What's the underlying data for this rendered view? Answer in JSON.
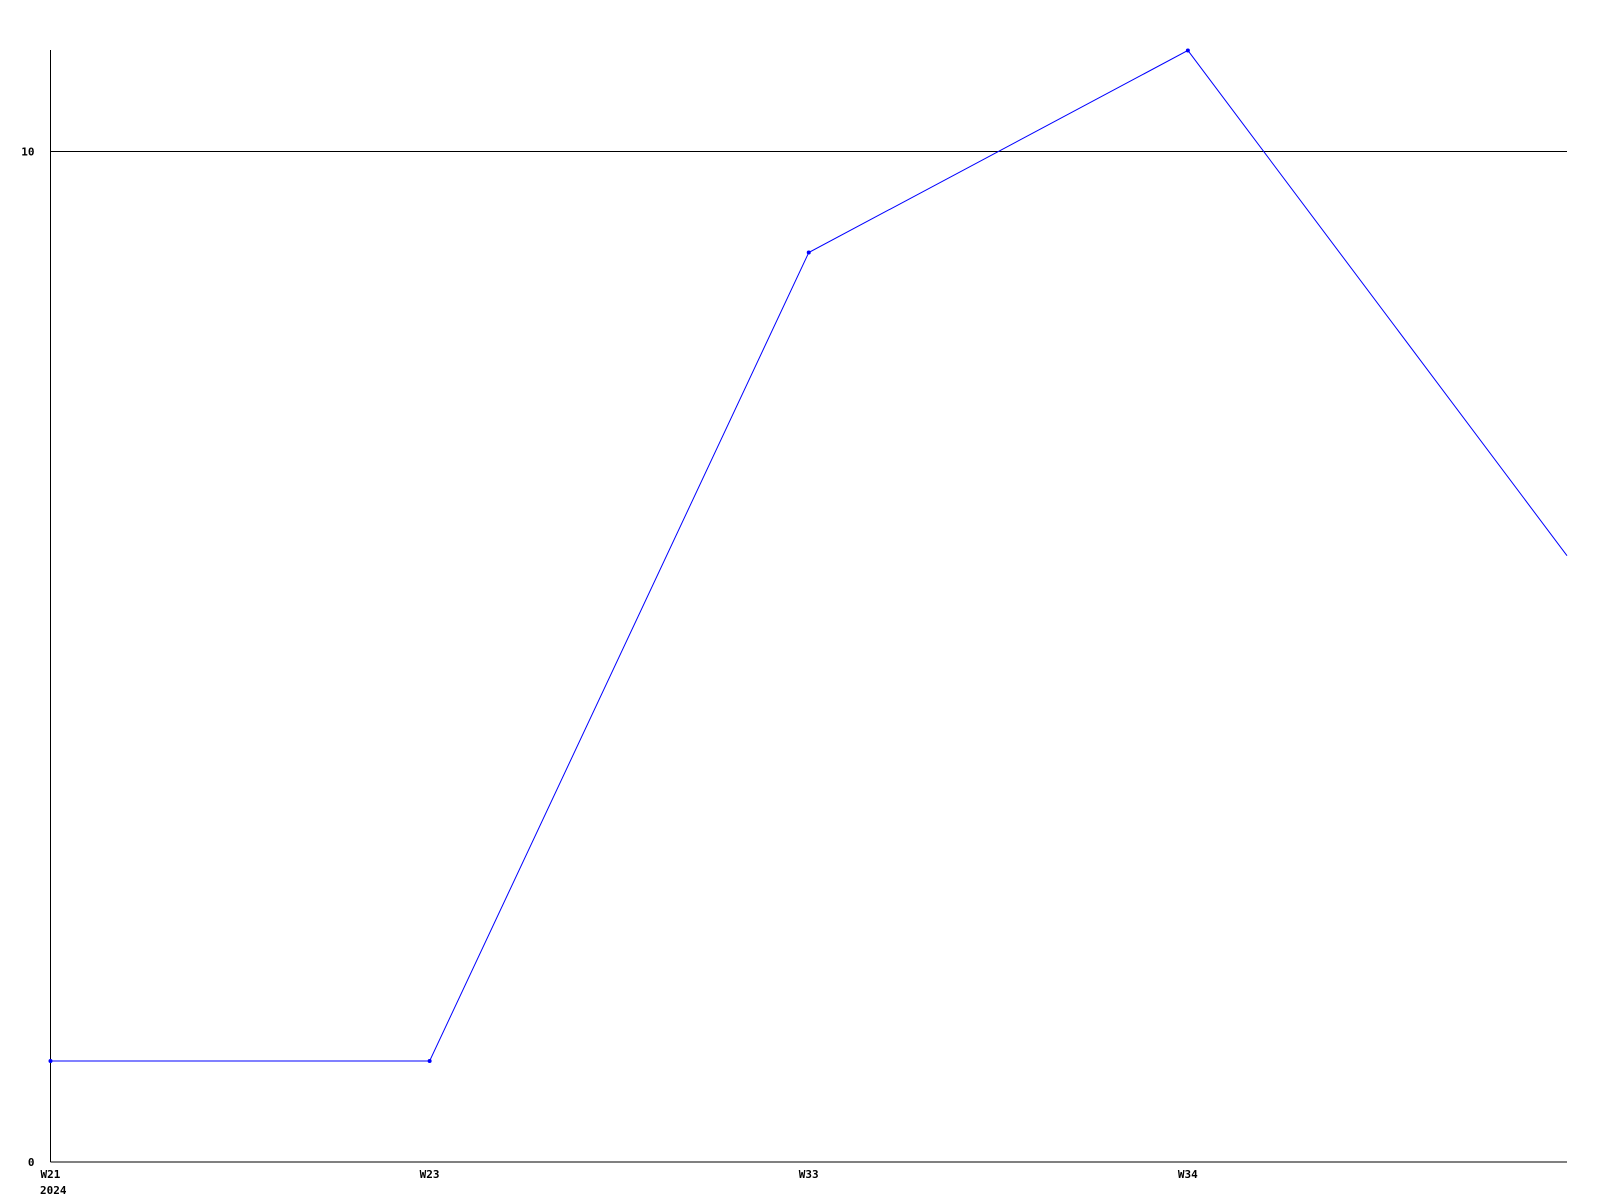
{
  "chart_data": {
    "type": "line",
    "title": "",
    "xlabel": "",
    "ylabel": "",
    "categories": [
      "W21",
      "W23",
      "W33",
      "W34",
      ""
    ],
    "x_sublabel": "2024",
    "values": [
      1,
      1,
      9,
      11,
      6
    ],
    "ylim": [
      0,
      11
    ],
    "yticks": [
      0,
      10
    ],
    "ytick_labels": [
      "0",
      "10"
    ],
    "grid": "horizontal line at 10",
    "line_color": "#0000ff",
    "axis_color": "#000000",
    "legend": "none"
  }
}
